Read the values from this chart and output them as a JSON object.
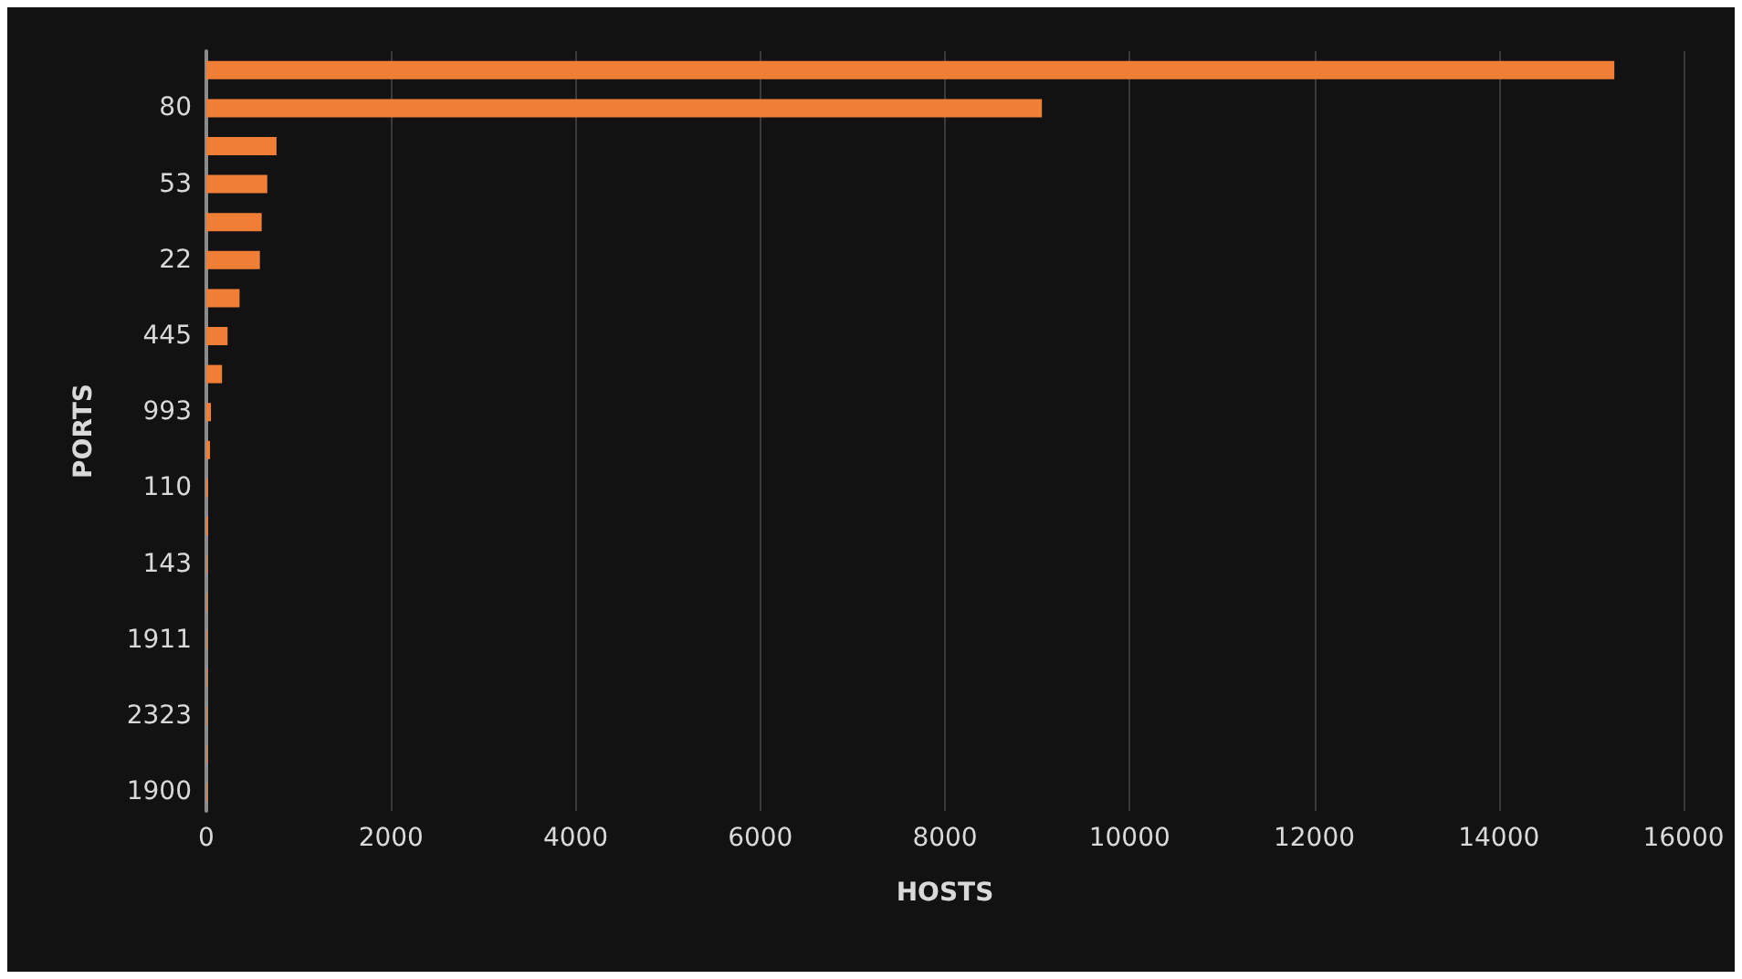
{
  "chart_data": {
    "type": "bar",
    "orientation": "horizontal",
    "xlabel": "HOSTS",
    "ylabel": "PORTS",
    "categories": [
      null,
      "80",
      null,
      "53",
      null,
      "22",
      null,
      "445",
      null,
      "993",
      null,
      "110",
      null,
      "143",
      null,
      "1911",
      null,
      "2323",
      null,
      "1900"
    ],
    "values": [
      15250,
      9050,
      760,
      660,
      600,
      580,
      360,
      230,
      170,
      50,
      40,
      20,
      20,
      10,
      10,
      10,
      10,
      10,
      10,
      10
    ],
    "color": "#f07f35",
    "xlim": [
      0,
      16000
    ],
    "xticks": [
      0,
      2000,
      4000,
      6000,
      8000,
      10000,
      12000,
      14000,
      16000
    ],
    "grid": "x"
  }
}
